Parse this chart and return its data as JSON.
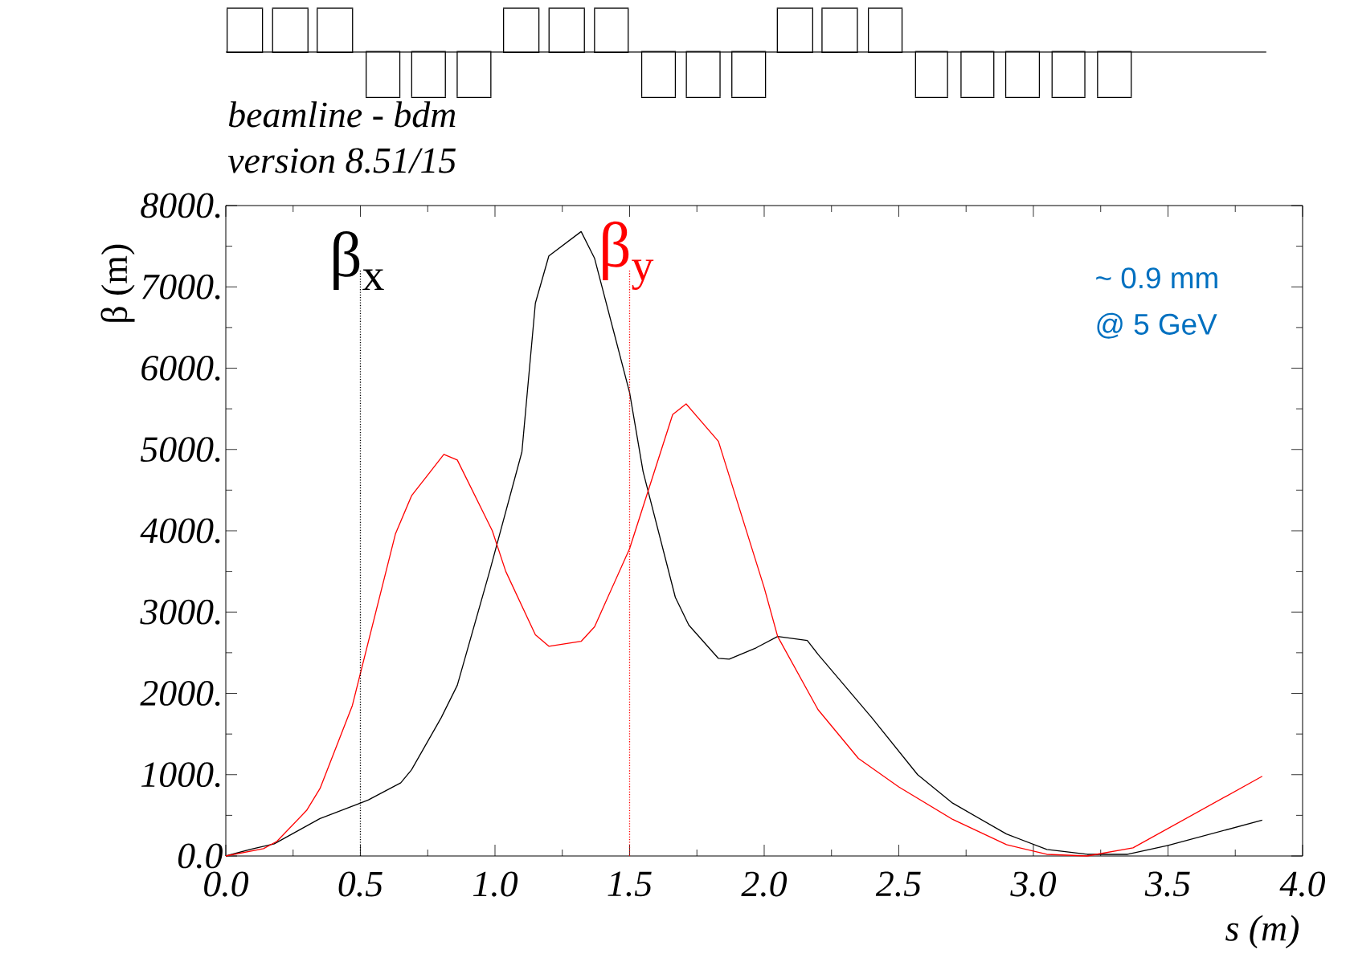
{
  "chart_data": {
    "type": "line",
    "title": "beamline - bdm",
    "subtitle": "version 8.51/15",
    "xlabel": "s (m)",
    "ylabel": "β  (m)",
    "xlim": [
      0,
      4
    ],
    "ylim": [
      0,
      8000
    ],
    "xticks": [
      {
        "value": 0,
        "label": "0.0"
      },
      0.5,
      {
        "value": 1,
        "label": "1.0"
      },
      1.5,
      {
        "value": 2,
        "label": "2.0"
      },
      2.5,
      {
        "value": 3,
        "label": "3.0"
      },
      3.5,
      {
        "value": 4,
        "label": "4.0"
      }
    ],
    "yticks": [
      {
        "value": 0,
        "label": "0.0"
      },
      {
        "value": 1000,
        "label": "1000."
      },
      {
        "value": 2000,
        "label": "2000."
      },
      {
        "value": 3000,
        "label": "3000."
      },
      {
        "value": 4000,
        "label": "4000."
      },
      {
        "value": 5000,
        "label": "5000."
      },
      {
        "value": 6000,
        "label": "6000."
      },
      {
        "value": 7000,
        "label": "7000."
      },
      {
        "value": 8000,
        "label": "8000."
      }
    ],
    "series": [
      {
        "color": "#000000",
        "x": [
          0,
          0.09,
          0.18,
          0.35,
          0.5,
          0.53,
          0.65,
          0.69,
          0.8,
          0.86,
          0.98,
          1.1,
          1.15,
          1.2,
          1.32,
          1.37,
          1.5,
          1.55,
          1.67,
          1.72,
          1.83,
          1.87,
          1.97,
          2.05,
          2.16,
          2.2,
          2.4,
          2.57,
          2.7,
          2.9,
          3.05,
          3.2,
          3.35,
          3.5,
          3.85
        ],
        "values": [
          0,
          80,
          150,
          460,
          650,
          690,
          900,
          1060,
          1700,
          2100,
          3500,
          4970,
          6800,
          7380,
          7680,
          7350,
          5700,
          4730,
          3180,
          2840,
          2430,
          2420,
          2560,
          2700,
          2650,
          2480,
          1700,
          1000,
          650,
          270,
          80,
          20,
          20,
          130,
          440
        ]
      },
      {
        "color": "#ff0000",
        "x": [
          0,
          0.14,
          0.19,
          0.3,
          0.35,
          0.47,
          0.63,
          0.69,
          0.81,
          0.86,
          0.99,
          1.04,
          1.15,
          1.2,
          1.32,
          1.37,
          1.5,
          1.66,
          1.71,
          1.83,
          2.0,
          2.05,
          2.2,
          2.25,
          2.35,
          2.5,
          2.7,
          2.9,
          3.05,
          3.2,
          3.37,
          3.85
        ],
        "values": [
          0,
          90,
          180,
          560,
          830,
          1850,
          3960,
          4430,
          4940,
          4870,
          4000,
          3500,
          2720,
          2580,
          2640,
          2820,
          3780,
          5430,
          5560,
          5100,
          3300,
          2700,
          1800,
          1600,
          1200,
          850,
          450,
          140,
          20,
          0,
          100,
          980
        ]
      }
    ],
    "ref_lines": [
      {
        "axis": "x",
        "value": 0.5,
        "label": "β$_{x}$",
        "color": "#000000",
        "line_style": "dotted"
      },
      {
        "axis": "x",
        "value": 1.5,
        "label": "β$_{y}$",
        "color": "#ff0000",
        "line_style": "dotted"
      }
    ],
    "annotations": [
      "~ 0.9 mm",
      "@ 5 GeV"
    ]
  }
}
